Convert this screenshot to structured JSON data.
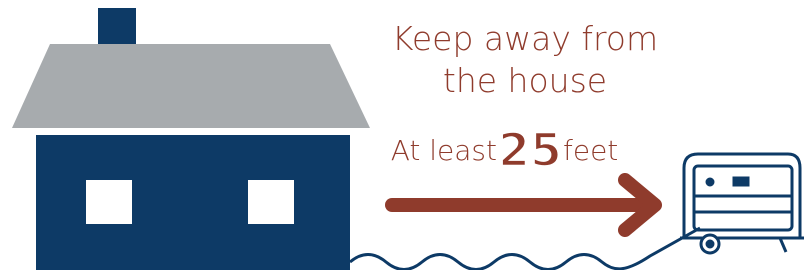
{
  "heading": {
    "lines": [
      "Keep away from",
      "the house"
    ]
  },
  "distance": {
    "prefix": "At least",
    "number": "25",
    "unit": "feet"
  }
}
